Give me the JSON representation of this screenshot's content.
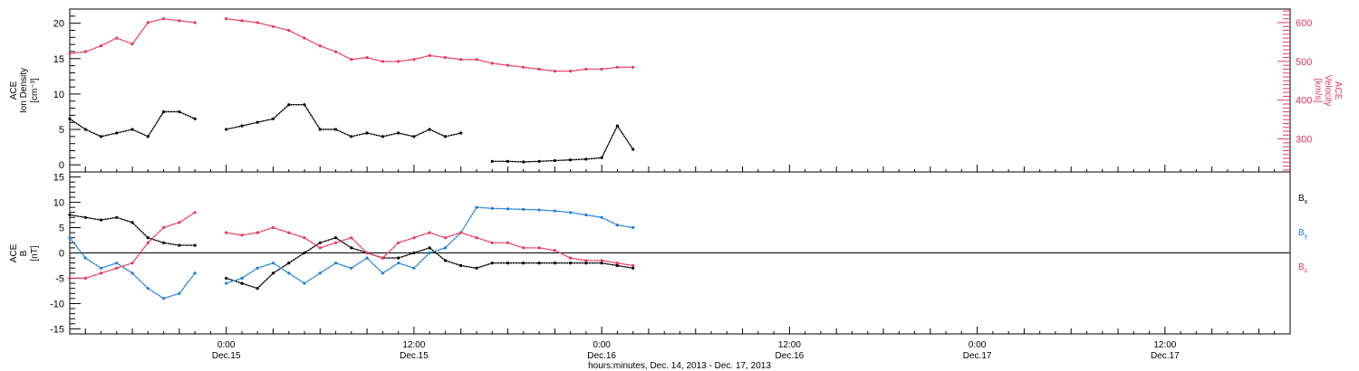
{
  "colors": {
    "black": "#000000",
    "red": "#e8375e",
    "blue": "#1e7fd6"
  },
  "x_axis": {
    "title": "hours:minutes, Dec. 14, 2013 - Dec. 17, 2013",
    "start_hour": 14,
    "end_hour": 92,
    "ticks": [
      {
        "hour": 24,
        "time": "0:00",
        "date": "Dec.15"
      },
      {
        "hour": 36,
        "time": "12:00",
        "date": "Dec.15"
      },
      {
        "hour": 48,
        "time": "0:00",
        "date": "Dec.16"
      },
      {
        "hour": 60,
        "time": "12:00",
        "date": "Dec.16"
      },
      {
        "hour": 72,
        "time": "0:00",
        "date": "Dec.17"
      },
      {
        "hour": 84,
        "time": "12:00",
        "date": "Dec.17"
      }
    ]
  },
  "top_panel": {
    "left_axis": {
      "line1": "ACE",
      "line2": "Ion Density",
      "units": "[cm⁻³]",
      "min": -1,
      "max": 22,
      "ticks": [
        0,
        5,
        10,
        15,
        20
      ]
    },
    "right_axis": {
      "line1": "ACE",
      "line2": "Velocity",
      "units": "[km/s]",
      "min": 215,
      "max": 635,
      "ticks": [
        300,
        400,
        500,
        600
      ]
    }
  },
  "bottom_panel": {
    "left_axis": {
      "line1": "ACE",
      "line2": "B",
      "units": "[nT]",
      "min": -16,
      "max": 16,
      "ticks": [
        -15,
        -10,
        -5,
        0,
        5,
        10,
        15
      ]
    },
    "legend": [
      {
        "label": "B",
        "sub": "x",
        "color": "#000000"
      },
      {
        "label": "B",
        "sub": "y",
        "color": "#1e7fd6"
      },
      {
        "label": "B",
        "sub": "z",
        "color": "#e8375e"
      }
    ]
  },
  "chart_data": [
    {
      "type": "scatter",
      "panel": "top",
      "x_units": "hours since Dec. 14, 2013 00:00",
      "series": [
        {
          "name": "Ion Density",
          "axis": "left",
          "color": "#000000",
          "x": [
            14,
            15,
            16,
            17,
            18,
            19,
            20,
            21,
            22,
            23,
            24,
            25,
            26,
            27,
            28,
            29,
            30,
            31,
            32,
            33,
            34,
            35,
            36,
            37,
            38,
            39,
            40,
            41,
            42,
            43,
            44,
            45,
            46,
            47,
            48,
            49,
            50
          ],
          "y": [
            6.5,
            5,
            4,
            4.5,
            5,
            4,
            7.5,
            7.5,
            6.5,
            null,
            5,
            5.5,
            6,
            6.5,
            8.5,
            8.5,
            5,
            5,
            4,
            4.5,
            4,
            4.5,
            4,
            5,
            4,
            4.5,
            null,
            0.5,
            0.5,
            0.4,
            0.5,
            0.6,
            0.7,
            0.8,
            1,
            5.5,
            2.2
          ]
        },
        {
          "name": "Velocity",
          "axis": "right",
          "color": "#e8375e",
          "x": [
            14,
            15,
            16,
            17,
            18,
            19,
            20,
            21,
            22,
            23,
            24,
            25,
            26,
            27,
            28,
            29,
            30,
            31,
            32,
            33,
            34,
            35,
            36,
            37,
            38,
            39,
            40,
            41,
            42,
            43,
            44,
            45,
            46,
            47,
            48,
            49,
            50
          ],
          "y": [
            520,
            525,
            540,
            560,
            545,
            600,
            610,
            605,
            600,
            null,
            610,
            605,
            600,
            590,
            580,
            560,
            540,
            525,
            505,
            510,
            500,
            500,
            505,
            515,
            510,
            505,
            505,
            495,
            490,
            485,
            480,
            475,
            475,
            480,
            480,
            485,
            485
          ]
        }
      ]
    },
    {
      "type": "scatter",
      "panel": "bottom",
      "x_units": "hours since Dec. 14, 2013 00:00",
      "series": [
        {
          "name": "Bx",
          "color": "#000000",
          "x": [
            14,
            15,
            16,
            17,
            18,
            19,
            20,
            21,
            22,
            23,
            24,
            25,
            26,
            27,
            28,
            29,
            30,
            31,
            32,
            33,
            34,
            35,
            36,
            37,
            38,
            39,
            40,
            41,
            42,
            43,
            44,
            45,
            46,
            47,
            48,
            49,
            50
          ],
          "y": [
            7.5,
            7,
            6.5,
            7,
            6,
            3,
            2,
            1.5,
            1.5,
            null,
            -5,
            -6,
            -7,
            -4,
            -2,
            0,
            2,
            3,
            1,
            0,
            -1,
            -1,
            0,
            1,
            -1.5,
            -2.5,
            -3,
            -2,
            -2,
            -2,
            -2,
            -2,
            -2,
            -2,
            -2,
            -2.5,
            -3
          ]
        },
        {
          "name": "By",
          "color": "#1e7fd6",
          "x": [
            14,
            15,
            16,
            17,
            18,
            19,
            20,
            21,
            22,
            23,
            24,
            25,
            26,
            27,
            28,
            29,
            30,
            31,
            32,
            33,
            34,
            35,
            36,
            37,
            38,
            39,
            40,
            41,
            42,
            43,
            44,
            45,
            46,
            47,
            48,
            49,
            50
          ],
          "y": [
            3,
            -1,
            -3,
            -2,
            -4,
            -7,
            -9,
            -8,
            -4,
            null,
            -6,
            -5,
            -3,
            -2,
            -4,
            -6,
            -4,
            -2,
            -3,
            -1,
            -4,
            -2,
            -3,
            0,
            1,
            4,
            9,
            8.8,
            8.7,
            8.6,
            8.5,
            8.3,
            8,
            7.5,
            7,
            5.5,
            5
          ]
        },
        {
          "name": "Bz",
          "color": "#e8375e",
          "x": [
            14,
            15,
            16,
            17,
            18,
            19,
            20,
            21,
            22,
            23,
            24,
            25,
            26,
            27,
            28,
            29,
            30,
            31,
            32,
            33,
            34,
            35,
            36,
            37,
            38,
            39,
            40,
            41,
            42,
            43,
            44,
            45,
            46,
            47,
            48,
            49,
            50
          ],
          "y": [
            -5,
            -5,
            -4,
            -3,
            -2,
            2,
            5,
            6,
            8,
            null,
            4,
            3.5,
            4,
            5,
            4,
            3,
            1,
            2,
            3,
            0,
            -1,
            2,
            3,
            4,
            3,
            4,
            3,
            2,
            2,
            1,
            1,
            0.5,
            -1,
            -1.5,
            -1.5,
            -2,
            -2.5
          ]
        }
      ]
    }
  ]
}
